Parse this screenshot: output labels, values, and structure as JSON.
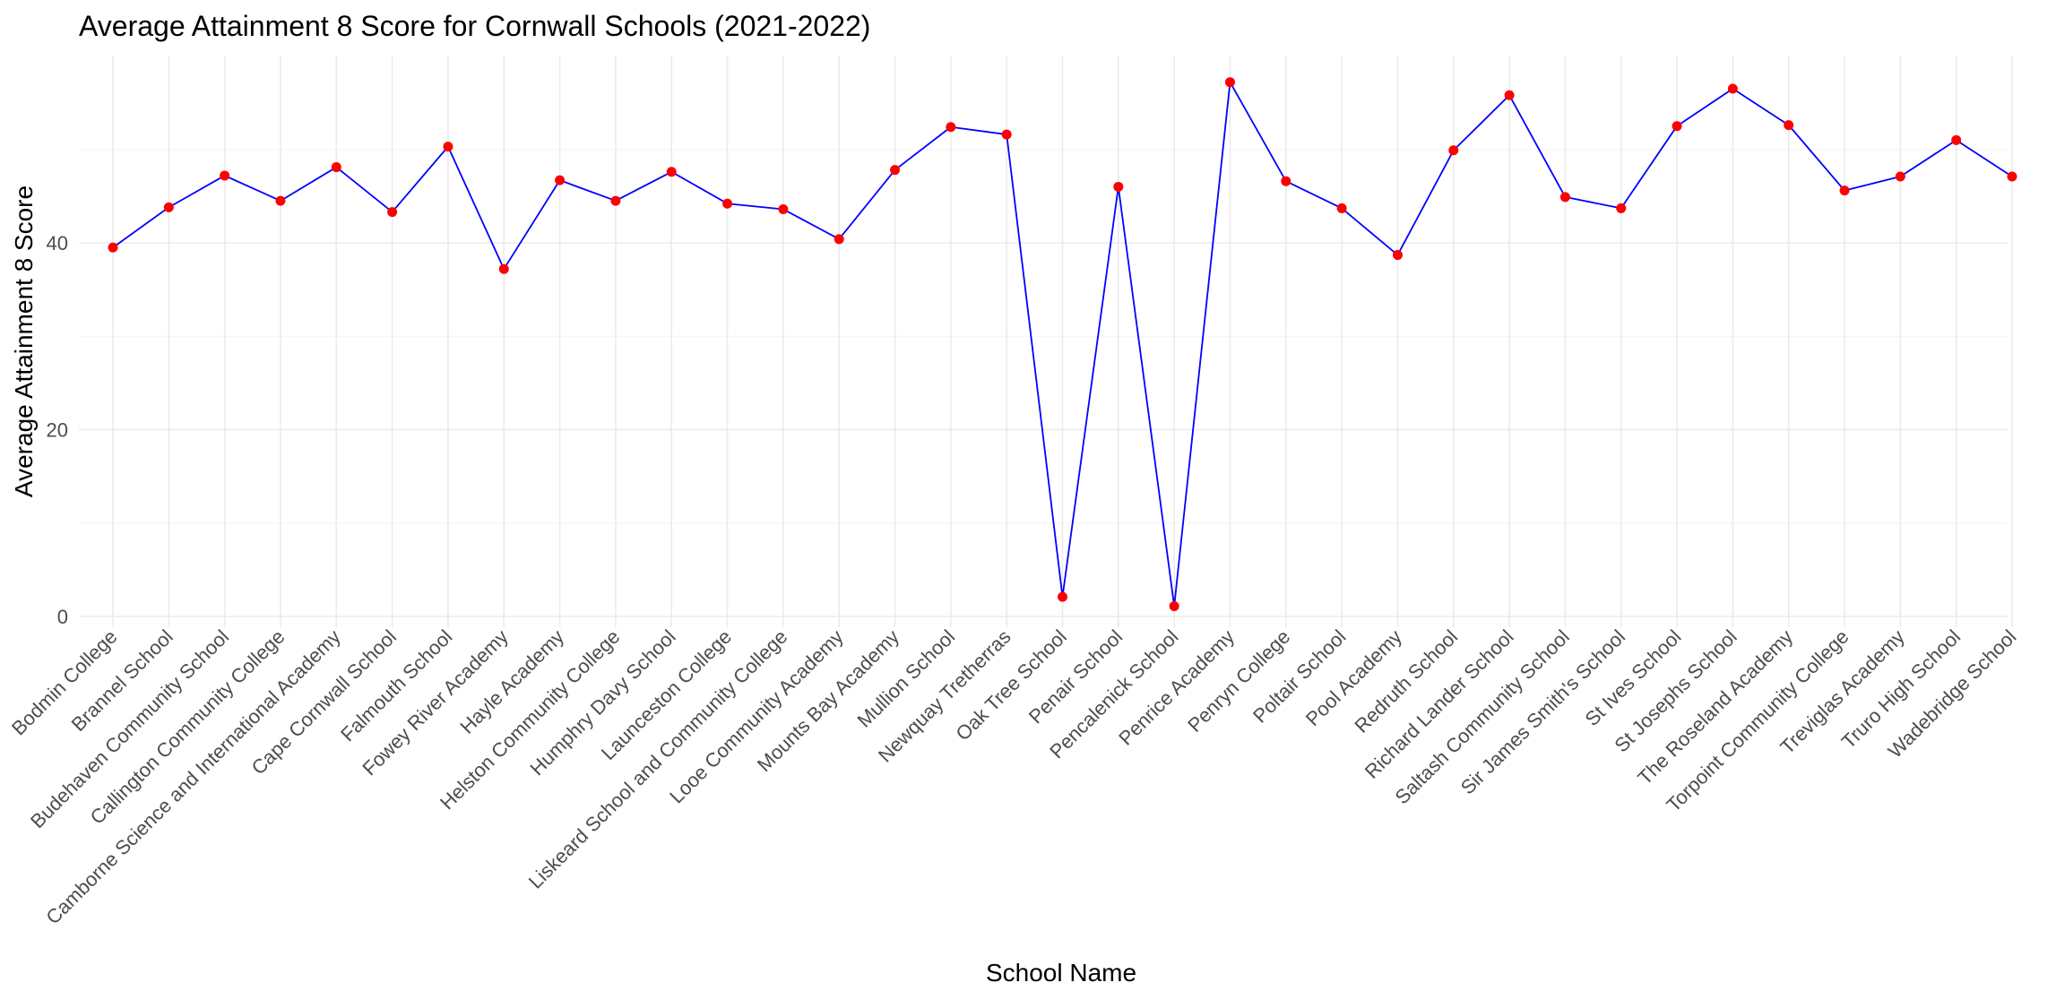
{
  "chart_data": {
    "type": "line",
    "title": "Average Attainment 8 Score for Cornwall Schools (2021-2022)",
    "xlabel": "School Name",
    "ylabel": "Average Attainment 8 Score",
    "ylim": [
      -1.8,
      59.8
    ],
    "yticks": [
      0,
      20,
      40
    ],
    "grid": true,
    "legend": "none",
    "line_color": "#0000ff",
    "point_color": "#ff0000",
    "categories": [
      "Bodmin College",
      "Brannel School",
      "Budehaven Community School",
      "Callington Community College",
      "Camborne Science and International Academy",
      "Cape Cornwall School",
      "Falmouth School",
      "Fowey River Academy",
      "Hayle Academy",
      "Helston Community College",
      "Humphry Davy School",
      "Launceston College",
      "Liskeard School and Community College",
      "Looe Community Academy",
      "Mounts Bay Academy",
      "Mullion School",
      "Newquay Tretherras",
      "Oak Tree School",
      "Penair School",
      "Pencalenick School",
      "Penrice Academy",
      "Penryn College",
      "Poltair School",
      "Pool Academy",
      "Redruth School",
      "Richard Lander School",
      "Saltash Community School",
      "Sir James Smith's School",
      "St Ives School",
      "St Josephs School",
      "The Roseland Academy",
      "Torpoint Community College",
      "Treviglas Academy",
      "Truro High School",
      "Wadebridge School"
    ],
    "values": [
      39.5,
      43.8,
      47.2,
      44.5,
      48.1,
      43.3,
      50.3,
      37.2,
      46.7,
      44.5,
      47.6,
      44.2,
      43.6,
      40.4,
      47.8,
      52.4,
      51.6,
      2.1,
      46.0,
      1.1,
      57.2,
      46.6,
      43.7,
      38.7,
      49.9,
      55.8,
      44.9,
      43.7,
      52.5,
      56.5,
      52.6,
      45.6,
      47.1,
      51.0,
      47.1
    ]
  }
}
